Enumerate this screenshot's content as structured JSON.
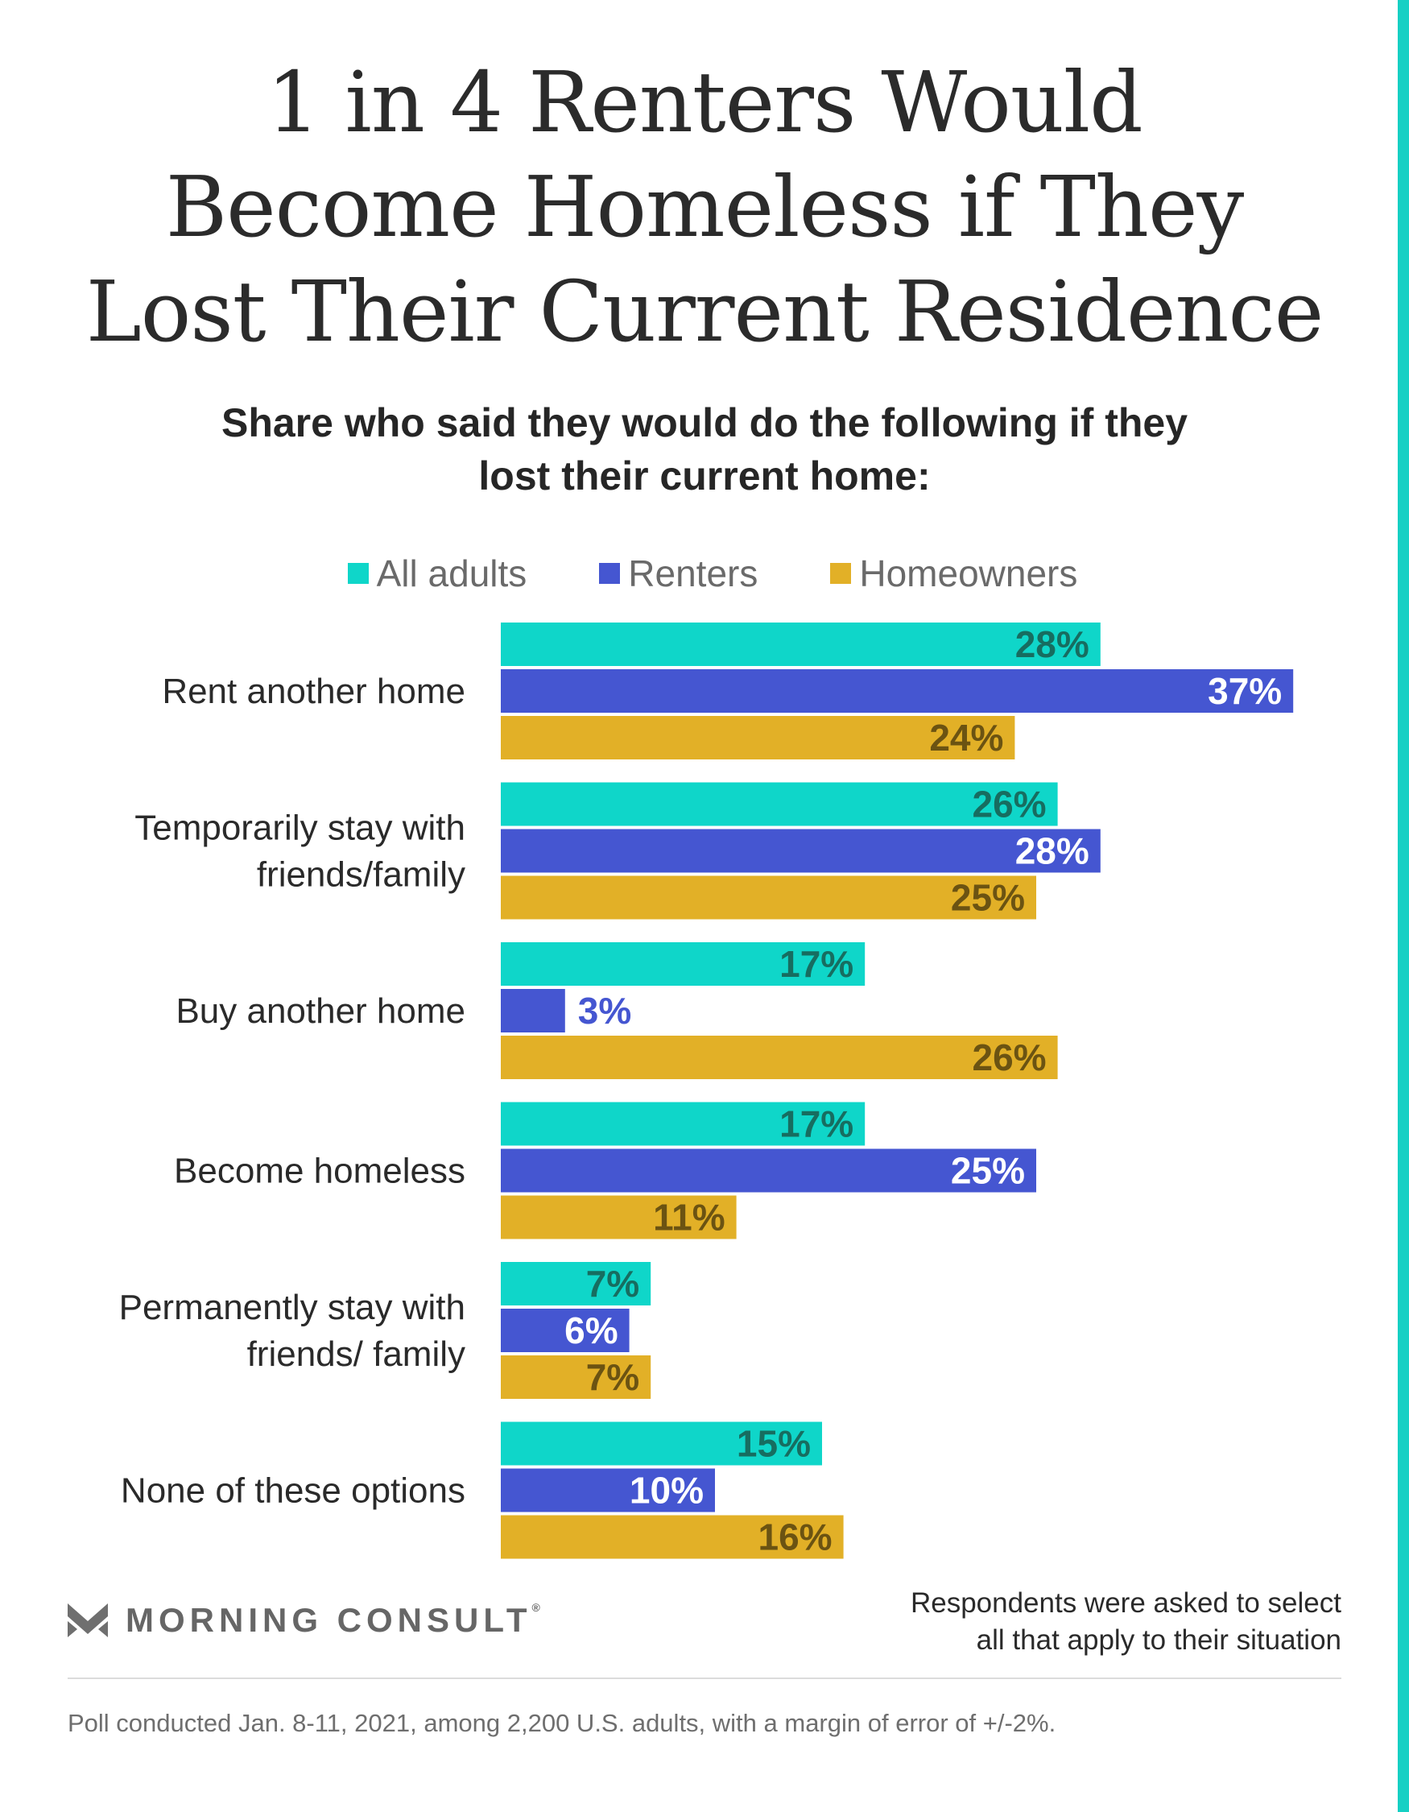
{
  "colors": {
    "accent_stripe": "#16d0c4",
    "all_adults": "#0fd6c9",
    "renters": "#4556d1",
    "homeowners": "#e2b027",
    "label_on_all_adults": "#176d60",
    "label_on_renters": "#ffffff",
    "label_outside_renters": "#4556d1",
    "label_on_homeowners": "#6b5312"
  },
  "chart_data": {
    "type": "bar",
    "orientation": "horizontal",
    "title": "1 in 4 Renters Would Become Homeless if They Lost Their Current Residence",
    "title_lines": [
      "1 in 4 Renters Would",
      "Become Homeless if They",
      "Lost Their Current Residence"
    ],
    "subtitle_lines": [
      "Share who said they would do the following if they",
      "lost their current home:"
    ],
    "categories": [
      "Rent another home",
      "Temporarily stay with friends/family",
      "Buy another home",
      "Become homeless",
      "Permanently stay with friends/ family",
      "None of these options"
    ],
    "category_lines": [
      [
        "Rent another home"
      ],
      [
        "Temporarily stay with",
        "friends/family"
      ],
      [
        "Buy another home"
      ],
      [
        "Become homeless"
      ],
      [
        "Permanently stay with",
        "friends/ family"
      ],
      [
        "None of these options"
      ]
    ],
    "series": [
      {
        "name": "All adults",
        "values": [
          28,
          26,
          17,
          17,
          7,
          15
        ]
      },
      {
        "name": "Renters",
        "values": [
          37,
          28,
          3,
          25,
          6,
          10
        ]
      },
      {
        "name": "Homeowners",
        "values": [
          24,
          25,
          26,
          11,
          7,
          16
        ]
      }
    ],
    "value_suffix": "%",
    "xlim": [
      0,
      37
    ],
    "grid": false,
    "legend_position": "top-center"
  },
  "footer": {
    "logo_text": "MORNING CONSULT",
    "logo_mark": "®",
    "note_lines": [
      "Respondents were asked to select",
      "all that apply to their situation"
    ],
    "source": "Poll conducted Jan. 8-11, 2021, among 2,200 U.S. adults, with a margin of error of +/-2%."
  }
}
